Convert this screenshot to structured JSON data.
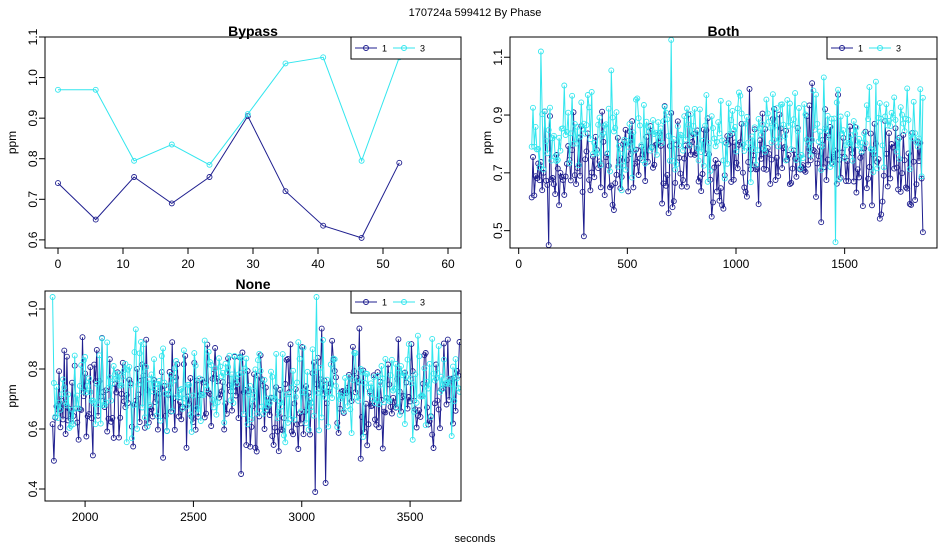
{
  "figure": {
    "title": "170724a   599412   By Phase",
    "xlabel": "seconds"
  },
  "colors": {
    "phase1": "#1f1f8f",
    "phase3": "#33e6ee"
  },
  "chart_data": [
    {
      "type": "line",
      "title": "Bypass",
      "ylabel": "ppm",
      "xlim": [
        -2,
        62
      ],
      "ylim": [
        0.58,
        1.1
      ],
      "xticks": [
        0,
        10,
        20,
        30,
        40,
        50,
        60
      ],
      "yticks": [
        0.6,
        0.7,
        0.8,
        0.9,
        1.0,
        1.1
      ],
      "ytick_labels": [
        "0.6",
        "0.7",
        "0.8",
        "0.9",
        "1.0",
        "1.1"
      ],
      "legend": {
        "placement": "top-right",
        "entries": [
          "1",
          "3"
        ]
      },
      "series": [
        {
          "name": "1",
          "x": [
            0,
            5.8,
            11.7,
            17.5,
            23.3,
            29.2,
            35,
            40.8,
            46.7,
            52.5
          ],
          "values": [
            0.74,
            0.65,
            0.755,
            0.69,
            0.755,
            0.905,
            0.72,
            0.635,
            0.605,
            0.79
          ]
        },
        {
          "name": "3",
          "x": [
            0,
            5.8,
            11.7,
            17.5,
            23.3,
            29.2,
            35,
            40.8,
            46.7,
            52.5
          ],
          "values": [
            0.97,
            0.97,
            0.795,
            0.835,
            0.785,
            0.91,
            1.035,
            1.05,
            0.795,
            1.05
          ]
        }
      ]
    },
    {
      "type": "line",
      "title": "Both",
      "ylabel": "ppm",
      "xlim": [
        -40,
        1925
      ],
      "ylim": [
        0.44,
        1.17
      ],
      "xticks": [
        0,
        500,
        1000,
        1500
      ],
      "yticks": [
        0.5,
        0.7,
        0.9,
        1.1
      ],
      "ytick_labels": [
        "0.5",
        "0.7",
        "0.9",
        "1.1"
      ],
      "legend": {
        "placement": "top-right",
        "entries": [
          "1",
          "3"
        ]
      },
      "series": [
        {
          "name": "1",
          "x_start": 60,
          "x_step": 6,
          "count": 301,
          "seed": 11,
          "mean": 0.73,
          "spread": 0.13,
          "min": 0.45,
          "max": 1.0,
          "highlights": [
            [
              140,
              0.45
            ],
            [
              1350,
              1.01
            ],
            [
              1470,
              0.97
            ]
          ]
        },
        {
          "name": "3",
          "x_start": 60,
          "x_step": 6,
          "count": 301,
          "seed": 23,
          "mean": 0.84,
          "spread": 0.11,
          "min": 0.46,
          "max": 1.16,
          "highlights": [
            [
              100,
              1.12
            ],
            [
              700,
              1.16
            ],
            [
              1460,
              0.46
            ]
          ]
        }
      ]
    },
    {
      "type": "line",
      "title": "None",
      "ylabel": "ppm",
      "xlim": [
        1815,
        3735
      ],
      "ylim": [
        0.36,
        1.06
      ],
      "xticks": [
        2000,
        2500,
        3000,
        3500
      ],
      "yticks": [
        0.4,
        0.6,
        0.8,
        1.0
      ],
      "ytick_labels": [
        "0.4",
        "0.6",
        "0.8",
        "1.0"
      ],
      "legend": {
        "placement": "top-right",
        "entries": [
          "1",
          "3"
        ]
      },
      "series": [
        {
          "name": "1",
          "x_start": 1850,
          "x_step": 6,
          "count": 314,
          "seed": 37,
          "mean": 0.7,
          "spread": 0.13,
          "min": 0.39,
          "max": 0.98,
          "highlights": [
            [
              3060,
              0.39
            ],
            [
              3110,
              0.42
            ],
            [
              2720,
              0.45
            ]
          ]
        },
        {
          "name": "3",
          "x_start": 1850,
          "x_step": 6,
          "count": 314,
          "seed": 53,
          "mean": 0.74,
          "spread": 0.11,
          "min": 0.51,
          "max": 1.04,
          "highlights": [
            [
              1850,
              1.04
            ],
            [
              3070,
              1.04
            ]
          ]
        }
      ]
    }
  ]
}
